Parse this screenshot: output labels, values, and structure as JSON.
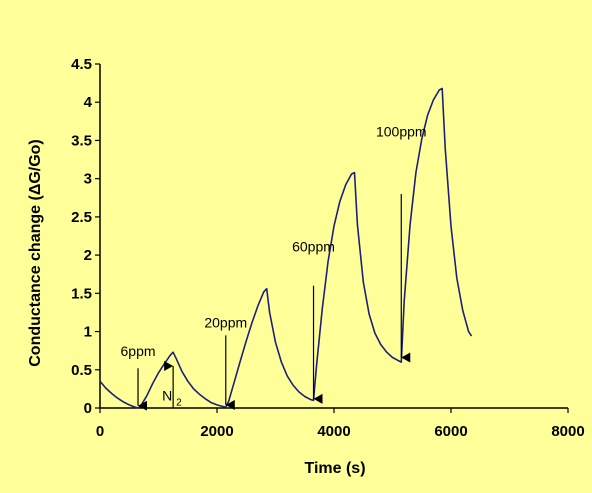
{
  "colors": {
    "background": "#ffff99",
    "series": "#1f1f7a",
    "axis": "#000000"
  },
  "chart_data": {
    "type": "line",
    "xlabel": "Time (s)",
    "ylabel": "Conductance change (ΔG/Go)",
    "xlim": [
      0,
      8000
    ],
    "ylim": [
      0,
      4.5
    ],
    "xticks": [
      0,
      2000,
      4000,
      6000,
      8000
    ],
    "xtick_labels": [
      "0",
      "2000",
      "4000",
      "6000",
      "8000"
    ],
    "yticks": [
      0,
      0.5,
      1,
      1.5,
      2,
      2.5,
      3,
      3.5,
      4,
      4.5
    ],
    "ytick_labels": [
      "0",
      "0.5",
      "1",
      "1.5",
      "2",
      "2.5",
      "3",
      "3.5",
      "4",
      "4.5"
    ],
    "grid": false,
    "series": [
      {
        "x": [
          0,
          100,
          200,
          300,
          400,
          500,
          600,
          650,
          700,
          800,
          900,
          1000,
          1100,
          1200,
          1250,
          1300,
          1400,
          1500,
          1600,
          1700,
          1800,
          1900,
          2000,
          2100,
          2150,
          2200,
          2300,
          2400,
          2500,
          2600,
          2700,
          2800,
          2850,
          2900,
          3000,
          3100,
          3200,
          3300,
          3400,
          3500,
          3600,
          3650,
          3700,
          3800,
          3900,
          4000,
          4100,
          4200,
          4300,
          4350,
          4400,
          4500,
          4600,
          4700,
          4800,
          4900,
          5000,
          5100,
          5150,
          5200,
          5300,
          5400,
          5500,
          5600,
          5700,
          5800,
          5850,
          5900,
          6000,
          6100,
          6200,
          6300,
          6350
        ],
        "y": [
          0.35,
          0.26,
          0.19,
          0.13,
          0.08,
          0.04,
          0.01,
          0.0,
          0.03,
          0.16,
          0.32,
          0.46,
          0.58,
          0.69,
          0.73,
          0.65,
          0.48,
          0.35,
          0.25,
          0.18,
          0.12,
          0.07,
          0.04,
          0.02,
          0.01,
          0.09,
          0.35,
          0.62,
          0.88,
          1.12,
          1.34,
          1.52,
          1.56,
          1.25,
          0.86,
          0.6,
          0.42,
          0.3,
          0.21,
          0.15,
          0.11,
          0.1,
          0.55,
          1.3,
          1.92,
          2.38,
          2.7,
          2.92,
          3.06,
          3.08,
          2.4,
          1.65,
          1.23,
          0.98,
          0.83,
          0.73,
          0.66,
          0.62,
          0.6,
          1.4,
          2.4,
          3.08,
          3.52,
          3.83,
          4.03,
          4.16,
          4.18,
          3.4,
          2.38,
          1.7,
          1.28,
          1.0,
          0.94
        ]
      }
    ],
    "annotations": [
      {
        "text": "6ppm",
        "arrow": {
          "from_xy": [
            650,
            0.52
          ],
          "to_xy": [
            650,
            0.03
          ],
          "direction": "down"
        },
        "label_xy": [
          650,
          0.68
        ]
      },
      {
        "text": "N2",
        "text_main": "N",
        "text_sub": "2",
        "arrow": {
          "from_xy": [
            1250,
            0.0
          ],
          "to_xy": [
            1250,
            0.55
          ],
          "direction": "up"
        },
        "label_xy": [
          1250,
          0.1
        ]
      },
      {
        "text": "20ppm",
        "arrow": {
          "from_xy": [
            2150,
            0.95
          ],
          "to_xy": [
            2150,
            0.04
          ],
          "direction": "down"
        },
        "label_xy": [
          2150,
          1.05
        ]
      },
      {
        "text": "60ppm",
        "arrow": {
          "from_xy": [
            3650,
            1.6
          ],
          "to_xy": [
            3650,
            0.12
          ],
          "direction": "down"
        },
        "label_xy": [
          3650,
          2.05
        ]
      },
      {
        "text": "100ppm",
        "arrow": {
          "from_xy": [
            5150,
            2.8
          ],
          "to_xy": [
            5150,
            0.66
          ],
          "direction": "down"
        },
        "label_xy": [
          5150,
          3.55
        ]
      }
    ]
  }
}
